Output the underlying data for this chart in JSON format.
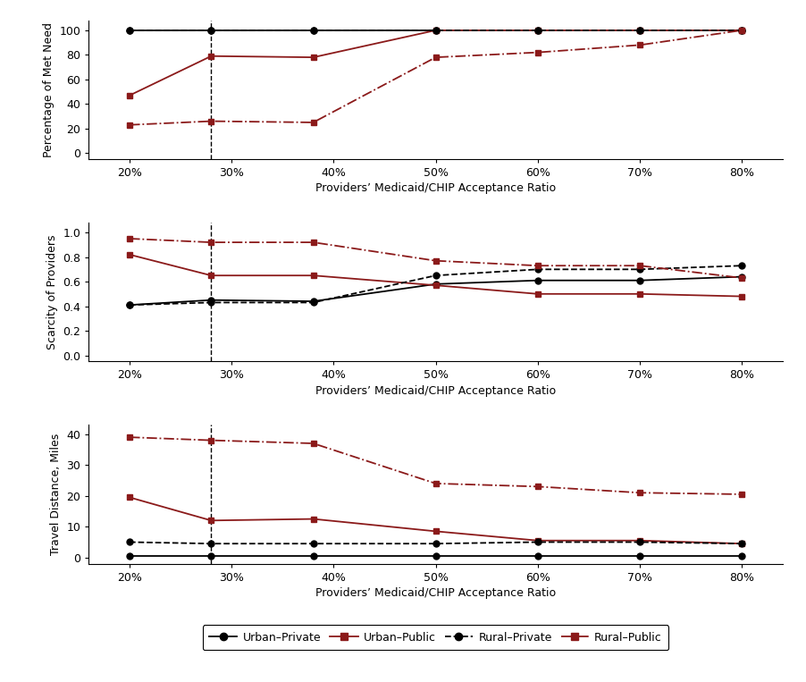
{
  "x_values": [
    20,
    28,
    38,
    50,
    60,
    70,
    80
  ],
  "x_ticks": [
    20,
    30,
    40,
    50,
    60,
    70,
    80
  ],
  "x_tick_labels": [
    "20%",
    "30%",
    "40%",
    "50%",
    "60%",
    "70%",
    "80%"
  ],
  "dashed_line_x": 28,
  "x_min": 16,
  "x_max": 84,
  "panel1_ylabel": "Percentage of Met Need",
  "panel1_ylim": [
    -5,
    108
  ],
  "panel1_yticks": [
    0,
    20,
    40,
    60,
    80,
    100
  ],
  "panel1_ytick_labels": [
    "0",
    "20",
    "40",
    "60",
    "80",
    "100"
  ],
  "panel1": {
    "urban_private": [
      100,
      100,
      100,
      100,
      100,
      100,
      100
    ],
    "urban_public": [
      47,
      79,
      78,
      100,
      100,
      100,
      100
    ],
    "rural_private": [
      100,
      100,
      100,
      100,
      100,
      100,
      100
    ],
    "rural_public": [
      23,
      26,
      25,
      78,
      82,
      88,
      100
    ]
  },
  "panel2_ylabel": "Scarcity of Providers",
  "panel2_ylim": [
    -0.05,
    1.08
  ],
  "panel2_yticks": [
    0.0,
    0.2,
    0.4,
    0.6,
    0.8,
    1.0
  ],
  "panel2_ytick_labels": [
    "0.0",
    "0.2",
    "0.4",
    "0.6",
    "0.8",
    "1.0"
  ],
  "panel2": {
    "urban_private": [
      0.41,
      0.45,
      0.44,
      0.58,
      0.61,
      0.61,
      0.64
    ],
    "urban_public": [
      0.82,
      0.65,
      0.65,
      0.57,
      0.5,
      0.5,
      0.48
    ],
    "rural_private": [
      0.41,
      0.43,
      0.43,
      0.65,
      0.7,
      0.7,
      0.73
    ],
    "rural_public": [
      0.95,
      0.92,
      0.92,
      0.77,
      0.73,
      0.73,
      0.63
    ]
  },
  "panel3_ylabel": "Travel Distance, Miles",
  "panel3_ylim": [
    -2,
    43
  ],
  "panel3_yticks": [
    0,
    10,
    20,
    30,
    40
  ],
  "panel3_ytick_labels": [
    "0",
    "10",
    "20",
    "30",
    "40"
  ],
  "panel3": {
    "urban_private": [
      0.5,
      0.5,
      0.5,
      0.5,
      0.5,
      0.5,
      0.5
    ],
    "urban_public": [
      19.5,
      12,
      12.5,
      8.5,
      5.5,
      5.5,
      4.5
    ],
    "rural_private": [
      5,
      4.5,
      4.5,
      4.5,
      5,
      5,
      4.5
    ],
    "rural_public": [
      39,
      38,
      37,
      24,
      23,
      21,
      20.5
    ]
  },
  "xlabel": "Providers’ Medicaid/CHIP Acceptance Ratio",
  "color_black": "#000000",
  "color_red": "#8B1A1A",
  "legend_labels": [
    "Urban–Private",
    "Urban–Public",
    "Rural–Private",
    "Rural–Public"
  ],
  "background_color": "#ffffff",
  "tick_fontsize": 9,
  "label_fontsize": 9,
  "linewidth": 1.3,
  "markersize": 5
}
